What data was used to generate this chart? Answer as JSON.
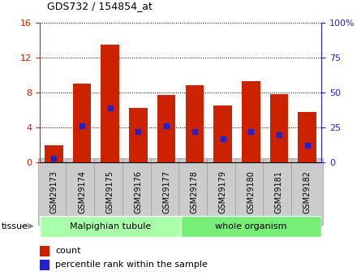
{
  "title": "GDS732 / 154854_at",
  "samples": [
    "GSM29173",
    "GSM29174",
    "GSM29175",
    "GSM29176",
    "GSM29177",
    "GSM29178",
    "GSM29179",
    "GSM29180",
    "GSM29181",
    "GSM29182"
  ],
  "counts": [
    2.0,
    9.0,
    13.5,
    6.2,
    7.7,
    8.8,
    6.5,
    9.3,
    7.8,
    5.8
  ],
  "percentile_ranks": [
    3.0,
    26.0,
    39.0,
    22.0,
    26.0,
    22.0,
    17.0,
    22.0,
    20.0,
    12.0
  ],
  "ylim_left": [
    0,
    16
  ],
  "ylim_right": [
    0,
    100
  ],
  "yticks_left": [
    0,
    4,
    8,
    12,
    16
  ],
  "yticks_right": [
    0,
    25,
    50,
    75,
    100
  ],
  "bar_color": "#cc2200",
  "marker_color": "#2222cc",
  "tissue_groups": [
    {
      "label": "Malpighian tubule",
      "start": 0,
      "end": 5,
      "color": "#aaffaa"
    },
    {
      "label": "whole organism",
      "start": 5,
      "end": 10,
      "color": "#77ee77"
    }
  ],
  "tissue_label": "tissue",
  "legend_count_label": "count",
  "legend_pct_label": "percentile rank within the sample",
  "tick_bg_color": "#cccccc",
  "axis_color_left": "#cc2200",
  "axis_color_right": "#2222cc"
}
